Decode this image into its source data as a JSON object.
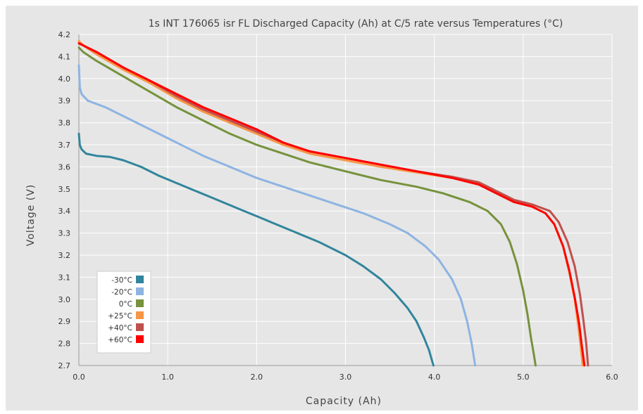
{
  "chart_data": {
    "type": "line",
    "title": "1s INT 176065 isr FL Discharged Capacity (Ah) at C/5 rate versus Temperatures (°C)",
    "xlabel": "Capacity (Ah)",
    "ylabel": "Voltage (V)",
    "xlim": [
      0,
      6
    ],
    "ylim": [
      2.7,
      4.2
    ],
    "x_ticks": [
      "0.0",
      "1.0",
      "2.0",
      "3.0",
      "4.0",
      "5.0",
      "6.0"
    ],
    "y_ticks": [
      "2.7",
      "2.8",
      "2.9",
      "3.0",
      "3.1",
      "3.2",
      "3.3",
      "3.4",
      "3.5",
      "3.6",
      "3.7",
      "3.8",
      "3.9",
      "4.0",
      "4.1",
      "4.2"
    ],
    "grid": true,
    "legend_position": "bottom-left",
    "series": [
      {
        "name": "-30°C",
        "color": "#31859c",
        "points": [
          [
            0.0,
            3.75
          ],
          [
            0.01,
            3.7
          ],
          [
            0.03,
            3.68
          ],
          [
            0.08,
            3.66
          ],
          [
            0.2,
            3.65
          ],
          [
            0.35,
            3.645
          ],
          [
            0.5,
            3.63
          ],
          [
            0.7,
            3.6
          ],
          [
            0.9,
            3.56
          ],
          [
            1.2,
            3.51
          ],
          [
            1.5,
            3.46
          ],
          [
            1.8,
            3.41
          ],
          [
            2.1,
            3.36
          ],
          [
            2.4,
            3.31
          ],
          [
            2.7,
            3.26
          ],
          [
            3.0,
            3.2
          ],
          [
            3.2,
            3.15
          ],
          [
            3.4,
            3.09
          ],
          [
            3.55,
            3.03
          ],
          [
            3.7,
            2.96
          ],
          [
            3.8,
            2.9
          ],
          [
            3.88,
            2.83
          ],
          [
            3.94,
            2.77
          ],
          [
            3.99,
            2.7
          ]
        ]
      },
      {
        "name": "-20°C",
        "color": "#8db4e2",
        "points": [
          [
            0.0,
            4.06
          ],
          [
            0.01,
            3.96
          ],
          [
            0.03,
            3.93
          ],
          [
            0.1,
            3.9
          ],
          [
            0.3,
            3.87
          ],
          [
            0.5,
            3.83
          ],
          [
            0.8,
            3.77
          ],
          [
            1.1,
            3.71
          ],
          [
            1.4,
            3.65
          ],
          [
            1.7,
            3.6
          ],
          [
            2.0,
            3.55
          ],
          [
            2.3,
            3.51
          ],
          [
            2.6,
            3.47
          ],
          [
            2.9,
            3.43
          ],
          [
            3.2,
            3.39
          ],
          [
            3.5,
            3.34
          ],
          [
            3.7,
            3.3
          ],
          [
            3.9,
            3.24
          ],
          [
            4.05,
            3.18
          ],
          [
            4.2,
            3.09
          ],
          [
            4.3,
            3.0
          ],
          [
            4.37,
            2.9
          ],
          [
            4.42,
            2.8
          ],
          [
            4.46,
            2.7
          ]
        ]
      },
      {
        "name": "0°C",
        "color": "#76923c",
        "points": [
          [
            0.0,
            4.14
          ],
          [
            0.05,
            4.12
          ],
          [
            0.2,
            4.08
          ],
          [
            0.5,
            4.01
          ],
          [
            0.8,
            3.94
          ],
          [
            1.1,
            3.87
          ],
          [
            1.4,
            3.81
          ],
          [
            1.7,
            3.75
          ],
          [
            2.0,
            3.7
          ],
          [
            2.3,
            3.66
          ],
          [
            2.6,
            3.62
          ],
          [
            3.0,
            3.58
          ],
          [
            3.4,
            3.54
          ],
          [
            3.8,
            3.51
          ],
          [
            4.1,
            3.48
          ],
          [
            4.4,
            3.44
          ],
          [
            4.6,
            3.4
          ],
          [
            4.75,
            3.34
          ],
          [
            4.85,
            3.26
          ],
          [
            4.93,
            3.16
          ],
          [
            5.0,
            3.04
          ],
          [
            5.05,
            2.93
          ],
          [
            5.09,
            2.82
          ],
          [
            5.12,
            2.75
          ],
          [
            5.14,
            2.7
          ]
        ]
      },
      {
        "name": "+25°C",
        "color": "#f79646",
        "points": [
          [
            0.0,
            4.17
          ],
          [
            0.05,
            4.15
          ],
          [
            0.2,
            4.11
          ],
          [
            0.5,
            4.04
          ],
          [
            0.8,
            3.98
          ],
          [
            1.1,
            3.91
          ],
          [
            1.4,
            3.85
          ],
          [
            1.7,
            3.8
          ],
          [
            2.0,
            3.75
          ],
          [
            2.3,
            3.7
          ],
          [
            2.6,
            3.66
          ],
          [
            3.0,
            3.63
          ],
          [
            3.4,
            3.6
          ],
          [
            3.8,
            3.575
          ],
          [
            4.2,
            3.55
          ],
          [
            4.5,
            3.52
          ],
          [
            4.7,
            3.48
          ],
          [
            4.9,
            3.44
          ],
          [
            5.1,
            3.42
          ],
          [
            5.25,
            3.39
          ],
          [
            5.35,
            3.34
          ],
          [
            5.45,
            3.24
          ],
          [
            5.52,
            3.12
          ],
          [
            5.58,
            3.0
          ],
          [
            5.62,
            2.88
          ],
          [
            5.65,
            2.78
          ],
          [
            5.67,
            2.7
          ]
        ]
      },
      {
        "name": "+40°C",
        "color": "#c0504d",
        "points": [
          [
            0.0,
            4.16
          ],
          [
            0.05,
            4.15
          ],
          [
            0.2,
            4.12
          ],
          [
            0.5,
            4.05
          ],
          [
            0.8,
            3.99
          ],
          [
            1.1,
            3.92
          ],
          [
            1.4,
            3.86
          ],
          [
            1.7,
            3.81
          ],
          [
            2.0,
            3.76
          ],
          [
            2.3,
            3.71
          ],
          [
            2.6,
            3.67
          ],
          [
            3.0,
            3.64
          ],
          [
            3.4,
            3.61
          ],
          [
            3.8,
            3.58
          ],
          [
            4.2,
            3.555
          ],
          [
            4.5,
            3.53
          ],
          [
            4.7,
            3.49
          ],
          [
            4.9,
            3.45
          ],
          [
            5.1,
            3.43
          ],
          [
            5.3,
            3.4
          ],
          [
            5.4,
            3.35
          ],
          [
            5.5,
            3.26
          ],
          [
            5.58,
            3.15
          ],
          [
            5.64,
            3.02
          ],
          [
            5.68,
            2.9
          ],
          [
            5.71,
            2.8
          ],
          [
            5.73,
            2.7
          ]
        ]
      },
      {
        "name": "+60°C",
        "color": "#ff0000",
        "points": [
          [
            0.0,
            4.16
          ],
          [
            0.05,
            4.15
          ],
          [
            0.2,
            4.12
          ],
          [
            0.5,
            4.05
          ],
          [
            0.8,
            3.99
          ],
          [
            1.1,
            3.93
          ],
          [
            1.4,
            3.87
          ],
          [
            1.7,
            3.82
          ],
          [
            2.0,
            3.77
          ],
          [
            2.3,
            3.71
          ],
          [
            2.6,
            3.67
          ],
          [
            3.0,
            3.64
          ],
          [
            3.4,
            3.61
          ],
          [
            3.8,
            3.58
          ],
          [
            4.2,
            3.55
          ],
          [
            4.5,
            3.52
          ],
          [
            4.7,
            3.48
          ],
          [
            4.9,
            3.44
          ],
          [
            5.1,
            3.42
          ],
          [
            5.25,
            3.39
          ],
          [
            5.35,
            3.34
          ],
          [
            5.45,
            3.24
          ],
          [
            5.52,
            3.13
          ],
          [
            5.58,
            3.01
          ],
          [
            5.63,
            2.89
          ],
          [
            5.66,
            2.79
          ],
          [
            5.69,
            2.7
          ]
        ]
      }
    ]
  }
}
